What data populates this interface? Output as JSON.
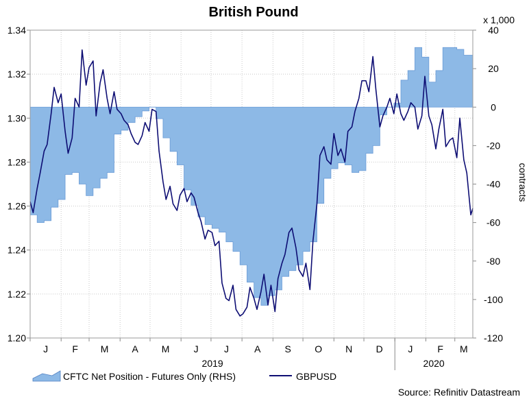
{
  "chart_data": {
    "type": "area",
    "title": "British Pound",
    "source": "Source: Refinitiv Datastream",
    "left_axis": {
      "ylim": [
        1.2,
        1.34
      ],
      "ticks": [
        "1.20",
        "1.22",
        "1.24",
        "1.26",
        "1.28",
        "1.30",
        "1.32",
        "1.34"
      ]
    },
    "right_axis": {
      "label": "contracts",
      "unit": "x 1,000",
      "ylim": [
        -120,
        40
      ],
      "ticks": [
        "-120",
        "-100",
        "-80",
        "-60",
        "-40",
        "-20",
        "0",
        "20",
        "40"
      ]
    },
    "x_axis": {
      "months": [
        "J",
        "F",
        "M",
        "A",
        "M",
        "J",
        "J",
        "A",
        "S",
        "O",
        "N",
        "D",
        "J",
        "F",
        "M"
      ],
      "years": [
        "2019",
        "2020"
      ]
    },
    "grid": true,
    "legend": {
      "placement": "bottom-left"
    },
    "series": [
      {
        "name": "CFTC Net Position - Futures Only (RHS)",
        "type": "area",
        "axis": "right",
        "color": "#8db9e6",
        "x": [
          "2019-01-01",
          "2019-01-08",
          "2019-01-15",
          "2019-01-22",
          "2019-01-29",
          "2019-02-05",
          "2019-02-12",
          "2019-02-19",
          "2019-02-26",
          "2019-03-05",
          "2019-03-12",
          "2019-03-19",
          "2019-03-26",
          "2019-04-02",
          "2019-04-09",
          "2019-04-16",
          "2019-04-23",
          "2019-04-30",
          "2019-05-07",
          "2019-05-14",
          "2019-05-21",
          "2019-05-28",
          "2019-06-04",
          "2019-06-11",
          "2019-06-18",
          "2019-06-25",
          "2019-07-02",
          "2019-07-09",
          "2019-07-16",
          "2019-07-23",
          "2019-07-30",
          "2019-08-06",
          "2019-08-13",
          "2019-08-20",
          "2019-08-27",
          "2019-09-03",
          "2019-09-10",
          "2019-09-17",
          "2019-09-24",
          "2019-10-01",
          "2019-10-08",
          "2019-10-15",
          "2019-10-22",
          "2019-10-29",
          "2019-11-05",
          "2019-11-12",
          "2019-11-19",
          "2019-11-26",
          "2019-12-03",
          "2019-12-10",
          "2019-12-17",
          "2019-12-24",
          "2019-12-31",
          "2020-01-07",
          "2020-01-14",
          "2020-01-21",
          "2020-01-28",
          "2020-02-04",
          "2020-02-11",
          "2020-02-18",
          "2020-02-25",
          "2020-03-03",
          "2020-03-10"
        ],
        "values": [
          -56,
          -60,
          -59,
          -52,
          -48,
          -35,
          -34,
          -40,
          -46,
          -42,
          -37,
          -34,
          -14,
          -12,
          -8,
          -5,
          -2,
          0,
          -6,
          -16,
          -23,
          -30,
          -43,
          -51,
          -57,
          -61,
          -63,
          -65,
          -70,
          -75,
          -82,
          -91,
          -99,
          -103,
          -98,
          -95,
          -88,
          -85,
          -82,
          -75,
          -70,
          -50,
          -37,
          -32,
          -29,
          -30,
          -34,
          -33,
          -24,
          -20,
          -4,
          0,
          2,
          14,
          19,
          31,
          26,
          13,
          19,
          31,
          31,
          30,
          27
        ]
      },
      {
        "name": "GBPUSD",
        "type": "line",
        "axis": "left",
        "color": "#0d0d73",
        "x": [
          "2019-01-01",
          "2019-01-04",
          "2019-01-08",
          "2019-01-11",
          "2019-01-15",
          "2019-01-18",
          "2019-01-22",
          "2019-01-25",
          "2019-01-29",
          "2019-02-01",
          "2019-02-05",
          "2019-02-08",
          "2019-02-12",
          "2019-02-15",
          "2019-02-19",
          "2019-02-22",
          "2019-02-26",
          "2019-03-01",
          "2019-03-05",
          "2019-03-08",
          "2019-03-12",
          "2019-03-15",
          "2019-03-19",
          "2019-03-22",
          "2019-03-26",
          "2019-03-29",
          "2019-04-02",
          "2019-04-05",
          "2019-04-09",
          "2019-04-12",
          "2019-04-16",
          "2019-04-19",
          "2019-04-23",
          "2019-04-26",
          "2019-04-30",
          "2019-05-03",
          "2019-05-07",
          "2019-05-10",
          "2019-05-14",
          "2019-05-17",
          "2019-05-21",
          "2019-05-24",
          "2019-05-28",
          "2019-05-31",
          "2019-06-04",
          "2019-06-07",
          "2019-06-11",
          "2019-06-14",
          "2019-06-18",
          "2019-06-21",
          "2019-06-25",
          "2019-06-28",
          "2019-07-02",
          "2019-07-05",
          "2019-07-09",
          "2019-07-12",
          "2019-07-16",
          "2019-07-19",
          "2019-07-23",
          "2019-07-26",
          "2019-07-30",
          "2019-08-02",
          "2019-08-06",
          "2019-08-09",
          "2019-08-13",
          "2019-08-16",
          "2019-08-20",
          "2019-08-23",
          "2019-08-27",
          "2019-08-30",
          "2019-09-03",
          "2019-09-06",
          "2019-09-10",
          "2019-09-13",
          "2019-09-17",
          "2019-09-20",
          "2019-09-24",
          "2019-09-27",
          "2019-10-01",
          "2019-10-04",
          "2019-10-08",
          "2019-10-11",
          "2019-10-15",
          "2019-10-18",
          "2019-10-22",
          "2019-10-25",
          "2019-10-29",
          "2019-11-01",
          "2019-11-05",
          "2019-11-08",
          "2019-11-12",
          "2019-11-15",
          "2019-11-19",
          "2019-11-22",
          "2019-11-26",
          "2019-11-29",
          "2019-12-03",
          "2019-12-06",
          "2019-12-10",
          "2019-12-13",
          "2019-12-17",
          "2019-12-20",
          "2019-12-24",
          "2019-12-27",
          "2019-12-31",
          "2020-01-03",
          "2020-01-07",
          "2020-01-10",
          "2020-01-14",
          "2020-01-17",
          "2020-01-21",
          "2020-01-24",
          "2020-01-28",
          "2020-01-31",
          "2020-02-04",
          "2020-02-07",
          "2020-02-11",
          "2020-02-14",
          "2020-02-18",
          "2020-02-21",
          "2020-02-25",
          "2020-02-28",
          "2020-03-03",
          "2020-03-06",
          "2020-03-10",
          "2020-03-13",
          "2020-03-17",
          "2020-03-19"
        ],
        "values": [
          1.262,
          1.257,
          1.268,
          1.275,
          1.285,
          1.288,
          1.302,
          1.314,
          1.307,
          1.311,
          1.294,
          1.284,
          1.291,
          1.309,
          1.305,
          1.331,
          1.315,
          1.323,
          1.326,
          1.301,
          1.316,
          1.322,
          1.309,
          1.302,
          1.312,
          1.304,
          1.302,
          1.299,
          1.297,
          1.293,
          1.289,
          1.288,
          1.292,
          1.298,
          1.294,
          1.304,
          1.303,
          1.285,
          1.271,
          1.263,
          1.269,
          1.261,
          1.258,
          1.265,
          1.268,
          1.262,
          1.266,
          1.264,
          1.257,
          1.253,
          1.245,
          1.249,
          1.248,
          1.242,
          1.244,
          1.225,
          1.218,
          1.217,
          1.224,
          1.213,
          1.21,
          1.211,
          1.214,
          1.223,
          1.218,
          1.213,
          1.221,
          1.229,
          1.215,
          1.224,
          1.212,
          1.227,
          1.234,
          1.238,
          1.248,
          1.25,
          1.241,
          1.231,
          1.228,
          1.234,
          1.222,
          1.244,
          1.261,
          1.283,
          1.287,
          1.281,
          1.279,
          1.293,
          1.283,
          1.286,
          1.28,
          1.294,
          1.296,
          1.303,
          1.309,
          1.317,
          1.317,
          1.312,
          1.328,
          1.313,
          1.296,
          1.301,
          1.305,
          1.309,
          1.302,
          1.311,
          1.302,
          1.299,
          1.303,
          1.307,
          1.305,
          1.295,
          1.301,
          1.319,
          1.301,
          1.297,
          1.286,
          1.295,
          1.304,
          1.287,
          1.29,
          1.291,
          1.282,
          1.3,
          1.281,
          1.275,
          1.256,
          1.259
        ]
      }
    ]
  }
}
